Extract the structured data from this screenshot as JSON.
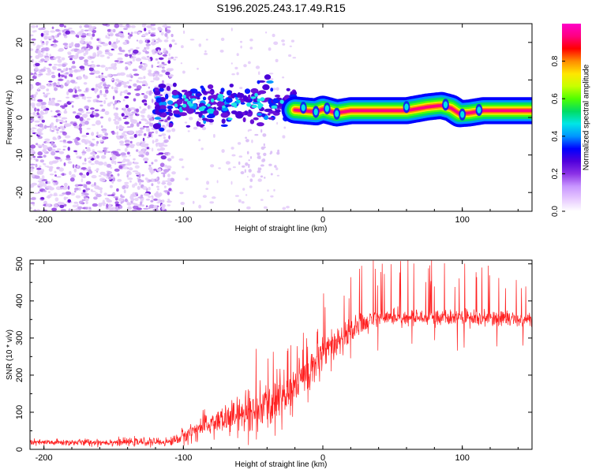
{
  "title": "S196.2025.243.17.49.R15",
  "chart_data": [
    {
      "type": "heatmap",
      "title": "S196.2025.243.17.49.R15",
      "xlabel": "Height of straight line (km)",
      "ylabel": "Frequency (Hz)",
      "xlim": [
        -210,
        150
      ],
      "ylim": [
        -25,
        25
      ],
      "x_ticks": [
        -200,
        -100,
        0,
        100
      ],
      "y_ticks": [
        -20,
        -10,
        0,
        10,
        20
      ],
      "colorbar": {
        "label": "Normalized spectral amplitude",
        "range": [
          0,
          1
        ],
        "ticks": [
          "0.0",
          "0.2",
          "0.4",
          "0.6",
          "0.8"
        ],
        "colors": [
          "#ffffff",
          "#e6c8ff",
          "#c896ff",
          "#8c32e6",
          "#5000dc",
          "#0000ff",
          "#0096ff",
          "#00e6e6",
          "#00dc64",
          "#50ff00",
          "#c8ff00",
          "#ffe600",
          "#ff8c00",
          "#ff0000",
          "#ff0080",
          "#ff00c8"
        ]
      },
      "features": {
        "noise_region_x": [
          -210,
          -120
        ],
        "blob_region_x": [
          -120,
          -20
        ],
        "blob_center_freq_hz": 3.5,
        "line_region_x": [
          -20,
          150
        ],
        "line_freq_hz": [
          [
            -20,
            2.0
          ],
          [
            -5,
            1.5
          ],
          [
            0,
            2.2
          ],
          [
            10,
            1.2
          ],
          [
            20,
            1.8
          ],
          [
            60,
            1.8
          ],
          [
            75,
            2.8
          ],
          [
            85,
            3.2
          ],
          [
            92,
            2.5
          ],
          [
            98,
            1.0
          ],
          [
            105,
            1.2
          ],
          [
            115,
            1.8
          ],
          [
            150,
            1.8
          ]
        ]
      }
    },
    {
      "type": "line",
      "xlabel": "Height of straight line (km)",
      "ylabel": "SNR (10 * v/v)",
      "xlim": [
        -210,
        150
      ],
      "ylim": [
        0,
        510
      ],
      "x_ticks": [
        -200,
        -100,
        0,
        100
      ],
      "y_ticks": [
        0,
        100,
        200,
        300,
        400,
        500
      ],
      "series": [
        {
          "name": "SNR",
          "color": "#ff2020",
          "baseline": [
            [
              -210,
              18
            ],
            [
              -110,
              20
            ],
            [
              -100,
              35
            ],
            [
              -90,
              55
            ],
            [
              -80,
              70
            ],
            [
              -70,
              80
            ],
            [
              -60,
              90
            ],
            [
              -50,
              100
            ],
            [
              -40,
              115
            ],
            [
              -30,
              140
            ],
            [
              -20,
              170
            ],
            [
              -10,
              215
            ],
            [
              0,
              250
            ],
            [
              10,
              285
            ],
            [
              20,
              320
            ],
            [
              30,
              345
            ],
            [
              40,
              355
            ],
            [
              60,
              355
            ],
            [
              80,
              355
            ],
            [
              100,
              352
            ],
            [
              120,
              355
            ],
            [
              150,
              350
            ]
          ],
          "noise_amplitude": [
            [
              -210,
              8
            ],
            [
              -110,
              10
            ],
            [
              -100,
              20
            ],
            [
              -70,
              40
            ],
            [
              -40,
              60
            ],
            [
              -20,
              70
            ],
            [
              0,
              55
            ],
            [
              20,
              35
            ],
            [
              40,
              20
            ],
            [
              150,
              18
            ]
          ]
        }
      ]
    }
  ]
}
